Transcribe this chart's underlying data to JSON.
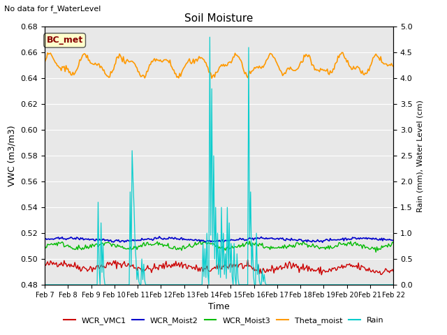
{
  "title": "Soil Moisture",
  "top_left_text": "No data for f_WaterLevel",
  "annotation_text": "BC_met",
  "xlabel": "Time",
  "ylabel_left": "VWC (m3/m3)",
  "ylabel_right": "Rain (mm), Water Level (cm)",
  "ylim_left": [
    0.48,
    0.68
  ],
  "ylim_right": [
    0.0,
    5.0
  ],
  "yticks_left": [
    0.48,
    0.5,
    0.52,
    0.54,
    0.56,
    0.58,
    0.6,
    0.62,
    0.64,
    0.66,
    0.68
  ],
  "yticks_right": [
    0.0,
    0.5,
    1.0,
    1.5,
    2.0,
    2.5,
    3.0,
    3.5,
    4.0,
    4.5,
    5.0
  ],
  "xtick_labels": [
    "Feb 7",
    "Feb 8",
    "Feb 9",
    "Feb 10",
    "Feb 11",
    "Feb 12",
    "Feb 13",
    "Feb 14",
    "Feb 15",
    "Feb 16",
    "Feb 17",
    "Feb 18",
    "Feb 19",
    "Feb 20",
    "Feb 21",
    "Feb 22"
  ],
  "colors": {
    "WCR_VMC1": "#cc0000",
    "WCR_Moist2": "#0000cc",
    "WCR_Moist3": "#00bb00",
    "Theta_moist": "#ff9900",
    "Rain": "#00cccc",
    "bg": "#e8e8e8",
    "annotation_bg": "#ffffcc",
    "annotation_border": "#555555",
    "annotation_text": "#880000"
  },
  "legend_labels": [
    "WCR_VMC1",
    "WCR_Moist2",
    "WCR_Moist3",
    "Theta_moist",
    "Rain"
  ]
}
